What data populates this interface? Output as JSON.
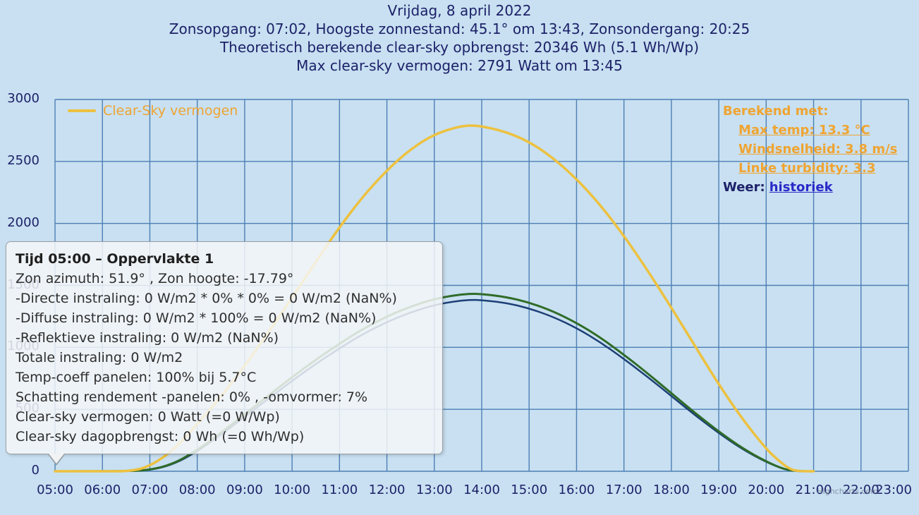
{
  "header": {
    "line1": "Vrijdag, 8 april 2022",
    "line2": "Zonsopgang: 07:02, Hoogste zonnestand: 45.1° om 13:43, Zonsondergang: 20:25",
    "line3": "Theoretisch berekende clear-sky opbrengst: 20346 Wh (5.1 Wh/Wp)",
    "line4": "Max clear-sky vermogen: 2791 Watt om 13:45"
  },
  "legend": {
    "label": "Clear-Sky vermogen"
  },
  "info": {
    "title": "Berekend met:",
    "links": [
      {
        "label": "Max temp: 13.3 °C"
      },
      {
        "label": "Windsnelheid: 3.8 m/s"
      },
      {
        "label": "Linke turbidity: 3.3"
      }
    ],
    "weather_label": "Weer:",
    "weather_link": "historiek"
  },
  "tooltip": {
    "title": "Tijd 05:00 – Oppervlakte 1",
    "lines": [
      "Zon azimuth: 51.9° , Zon hoogte: -17.79°",
      "-Directe instraling: 0 W/m2 * 0% * 0% = 0 W/m2 (NaN%)",
      "-Diffuse instraling: 0 W/m2 * 100% = 0 W/m2 (NaN%)",
      "-Reflektieve instraling: 0 W/m2 (NaN%)",
      "Totale instraling: 0 W/m2",
      "Temp-coeff panelen: 100% bij 5.7°C",
      "Schatting rendement -panelen: 0% , -omvormer: 7%",
      "Clear-sky vermogen: 0 Watt (=0 W/Wp)",
      "Clear-sky dagopbrengst: 0 Wh (=0 Wh/Wp)"
    ]
  },
  "watermark": "Highcharts.com",
  "colors": {
    "background": "#c8e0f1",
    "grid": "#4d7fb5",
    "navy_text": "#1d2169",
    "orange_text": "#efa432",
    "link_blue": "#2a2ac8",
    "clear_sky_line": "#edc13f",
    "green_line": "#2f6b27",
    "dark_blue_line": "#1d3f76"
  },
  "chart_data": {
    "type": "line",
    "title": "Vrijdag, 8 april 2022",
    "xlabel": "",
    "ylabel": "",
    "xlim": [
      5,
      23
    ],
    "ylim": [
      0,
      3000
    ],
    "grid": true,
    "grid_color": "#4d7fb5",
    "legend_position": "top-left",
    "x_ticks": [
      "05:00",
      "06:00",
      "07:00",
      "08:00",
      "09:00",
      "10:00",
      "11:00",
      "12:00",
      "13:00",
      "14:00",
      "15:00",
      "16:00",
      "17:00",
      "18:00",
      "19:00",
      "20:00",
      "21:00",
      "22:00",
      "23:00"
    ],
    "y_ticks": [
      0,
      500,
      1000,
      1500,
      2000,
      2500,
      3000
    ],
    "annotations": {
      "max_clear_sky_watt": 2791,
      "max_clear_sky_time": "13:45",
      "clear_sky_yield_wh": 20346,
      "clear_sky_yield_wh_per_wp": 5.1,
      "sunrise": "07:02",
      "sunset": "20:25",
      "max_sun_elevation_deg": 45.1
    },
    "series": [
      {
        "id": "dark-blue",
        "name": "",
        "color": "#1d3f76",
        "width": 2.5,
        "points": [
          [
            5,
            0
          ],
          [
            6.5,
            0
          ],
          [
            7,
            8
          ],
          [
            7.5,
            55
          ],
          [
            8,
            160
          ],
          [
            8.5,
            295
          ],
          [
            9,
            440
          ],
          [
            9.5,
            585
          ],
          [
            10,
            730
          ],
          [
            10.5,
            866
          ],
          [
            11,
            992
          ],
          [
            11.5,
            1108
          ],
          [
            12,
            1205
          ],
          [
            12.5,
            1283
          ],
          [
            13,
            1342
          ],
          [
            13.5,
            1376
          ],
          [
            13.8,
            1383
          ],
          [
            14,
            1381
          ],
          [
            14.5,
            1360
          ],
          [
            15,
            1315
          ],
          [
            15.5,
            1247
          ],
          [
            16,
            1156
          ],
          [
            16.5,
            1042
          ],
          [
            17,
            906
          ],
          [
            17.5,
            761
          ],
          [
            18,
            607
          ],
          [
            18.5,
            452
          ],
          [
            19,
            307
          ],
          [
            19.5,
            177
          ],
          [
            20,
            74
          ],
          [
            20.4,
            11
          ],
          [
            20.7,
            0
          ],
          [
            21,
            0
          ]
        ]
      },
      {
        "id": "green",
        "name": "",
        "color": "#2f6b27",
        "width": 3,
        "points": [
          [
            5,
            0
          ],
          [
            6.5,
            0
          ],
          [
            7,
            10
          ],
          [
            7.5,
            60
          ],
          [
            8,
            170
          ],
          [
            8.5,
            310
          ],
          [
            9,
            460
          ],
          [
            9.5,
            610
          ],
          [
            10,
            760
          ],
          [
            10.5,
            900
          ],
          [
            11,
            1030
          ],
          [
            11.5,
            1150
          ],
          [
            12,
            1250
          ],
          [
            12.5,
            1330
          ],
          [
            13,
            1390
          ],
          [
            13.5,
            1425
          ],
          [
            13.8,
            1432
          ],
          [
            14,
            1430
          ],
          [
            14.5,
            1408
          ],
          [
            15,
            1362
          ],
          [
            15.5,
            1292
          ],
          [
            16,
            1198
          ],
          [
            16.5,
            1080
          ],
          [
            17,
            940
          ],
          [
            17.5,
            790
          ],
          [
            18,
            630
          ],
          [
            18.5,
            470
          ],
          [
            19,
            320
          ],
          [
            19.5,
            185
          ],
          [
            20,
            78
          ],
          [
            20.4,
            12
          ],
          [
            20.7,
            0
          ],
          [
            21,
            0
          ]
        ]
      },
      {
        "id": "clear-sky",
        "name": "Clear-Sky vermogen",
        "color": "#edc13f",
        "width": 3.5,
        "points": [
          [
            5,
            0
          ],
          [
            6,
            0
          ],
          [
            6.6,
            0
          ],
          [
            7,
            40
          ],
          [
            7.5,
            170
          ],
          [
            8,
            380
          ],
          [
            8.5,
            600
          ],
          [
            9,
            850
          ],
          [
            9.5,
            1120
          ],
          [
            10,
            1400
          ],
          [
            10.5,
            1690
          ],
          [
            11,
            1970
          ],
          [
            11.5,
            2220
          ],
          [
            12,
            2430
          ],
          [
            12.5,
            2600
          ],
          [
            13,
            2720
          ],
          [
            13.5,
            2780
          ],
          [
            13.75,
            2791
          ],
          [
            14,
            2785
          ],
          [
            14.5,
            2740
          ],
          [
            15,
            2660
          ],
          [
            15.5,
            2530
          ],
          [
            16,
            2360
          ],
          [
            16.5,
            2150
          ],
          [
            17,
            1900
          ],
          [
            17.5,
            1620
          ],
          [
            18,
            1320
          ],
          [
            18.5,
            1010
          ],
          [
            19,
            700
          ],
          [
            19.5,
            420
          ],
          [
            20,
            180
          ],
          [
            20.25,
            90
          ],
          [
            20.5,
            15
          ],
          [
            20.7,
            0
          ],
          [
            21,
            0
          ]
        ]
      }
    ]
  }
}
